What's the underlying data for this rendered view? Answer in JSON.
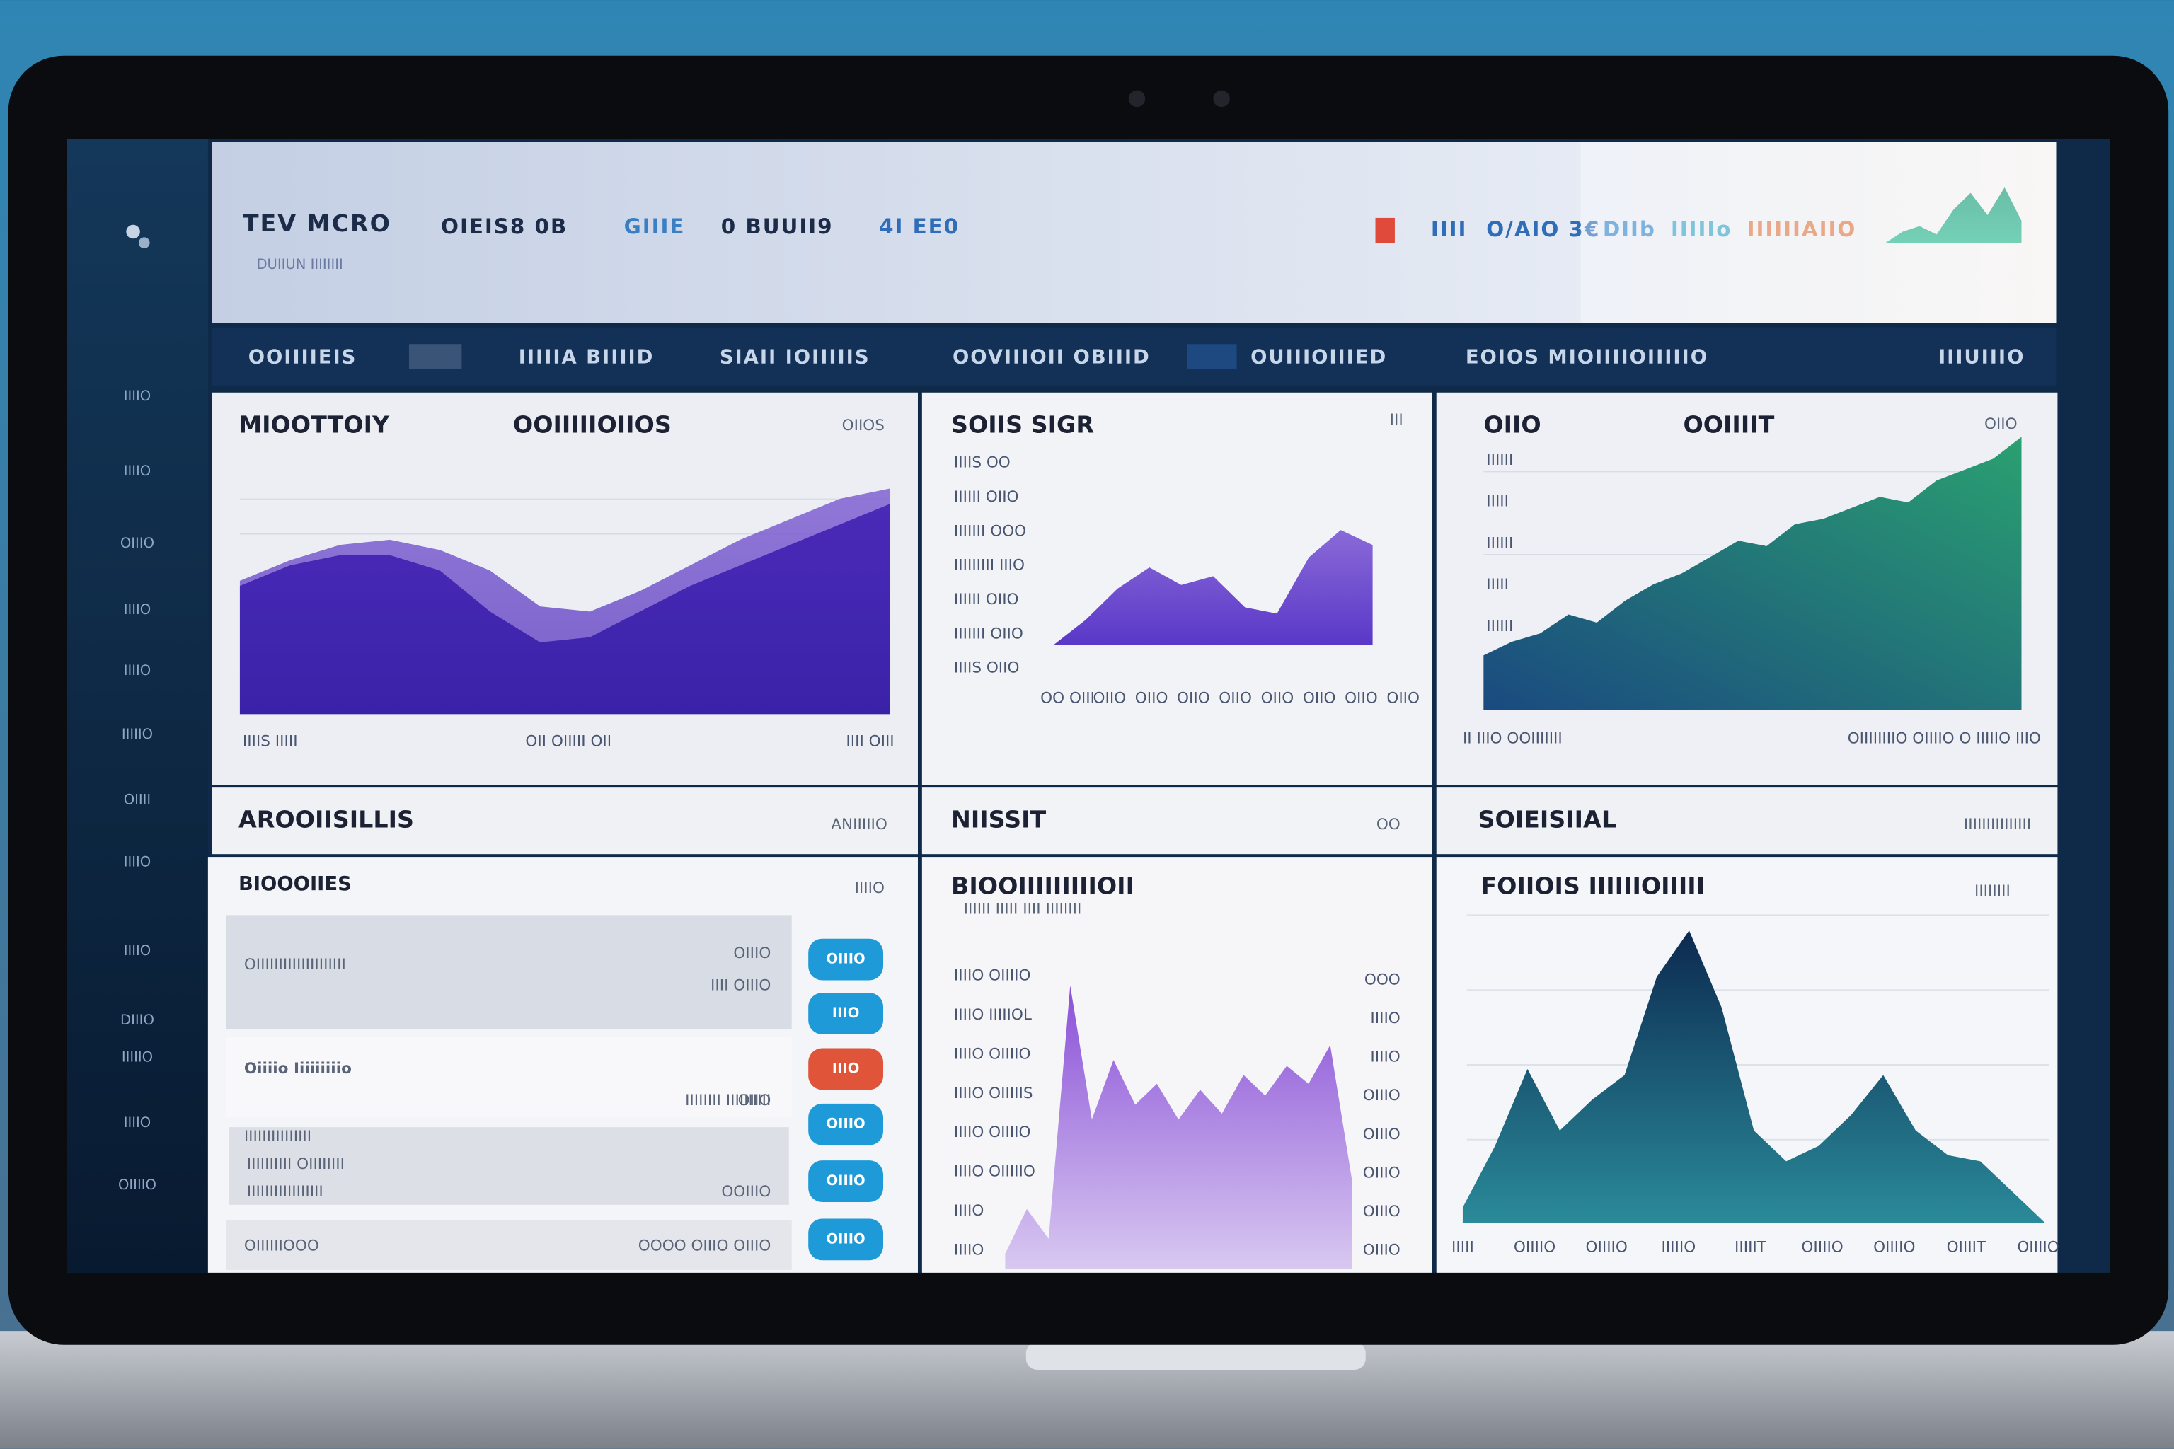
{
  "header": {
    "title": "TEV MCRO",
    "subtitle": "DUIIUN IIIIIIII",
    "nav": [
      "OIEIS8 0B",
      "GIIIE",
      "0 BUUII9",
      "4I EE0"
    ],
    "nav_colors": [
      "#1c2c48",
      "#3a7fc4",
      "#1c2c48",
      "#2f6db8"
    ],
    "right": [
      "IIII",
      "O/AIO 3€",
      "DIIb",
      "IIIIIo",
      "IIIIIIAIIO"
    ],
    "right_colors": [
      "#2f6db8",
      "#2f6db8",
      "#3a8ad0",
      "#3aa6c8",
      "#e07a4a"
    ]
  },
  "sidebar": [
    "IIIIO",
    "IIIIO",
    "OIIIO",
    "IIIIO",
    "IIIIO",
    "IIIIIO",
    "OIIII",
    "IIIIO",
    "IIIIO",
    "DIIIO",
    "IIIIIO",
    "IIIIO",
    "OIIIIO"
  ],
  "tabs": [
    "OOIIIIEIS",
    "IIIIIA BIIIID",
    "SIAII IOIIIIIS",
    "OOVIIIOII OBIIID",
    "OUIIIOIIIED",
    "EOIOS MIOIIIIOIIIIIO",
    "IIIUIIIO"
  ],
  "panels": {
    "sales": {
      "title": "AROOIISILLIS",
      "note": "ANIIIIIO",
      "subtitle": "BIOOOIIES",
      "subnote": "IIIIO"
    },
    "result": {
      "title": "NIISSIT",
      "note": "OO"
    },
    "social": {
      "title": "SOIEISIIAL",
      "note": "IIIIIIIIIIIIIII"
    }
  },
  "list": [
    {
      "title": "OIIIIIIIIIIIIIIIIIIII",
      "right": [
        "OIIIO",
        "IIII OIIIO"
      ],
      "button": "OIIIO",
      "color": "#1f9ad8"
    },
    {
      "title": "Oiiiio Iiiiiiiiio",
      "right": [
        "IIIIIIII IIIIIIIIII",
        "OIIO"
      ],
      "button": "IIIO",
      "color": "#e0553a"
    },
    {
      "title": "IIIIIIIIIIIIIII",
      "right": [
        "IIIIIIIIII OIIIIIIII",
        "IIIIIIIIIIIIIIIII",
        "OOIIIO"
      ],
      "button": "OIIIO",
      "color": "#1f9ad8"
    },
    {
      "title": "OIIIIIIOOO",
      "right": [
        "OOOO OIIIO OIIIO"
      ],
      "button": "OIIIO",
      "color": "#1f9ad8"
    }
  ],
  "extra_buttons": [
    "IIIO",
    "OIIIO"
  ],
  "chart_data": [
    {
      "type": "area",
      "title": "MIOOTTOIY",
      "headings": [
        "OOIIIIIOIIOS",
        "OIIOS"
      ],
      "ylim": [
        0,
        100
      ],
      "x_labels": [
        "IIIIS IIIII",
        "OII OIIIII OII",
        "IIII OIII"
      ],
      "series": [
        {
          "color": "#7a5ad0",
          "color2": "#5a3cc0",
          "values": [
            52,
            60,
            66,
            68,
            64,
            56,
            42,
            40,
            48,
            58,
            68,
            76,
            84,
            88
          ]
        },
        {
          "color": "#4a2ab8",
          "color2": "#3a22a8",
          "values": [
            50,
            58,
            62,
            62,
            56,
            40,
            28,
            30,
            40,
            50,
            58,
            66,
            74,
            82
          ]
        }
      ]
    },
    {
      "type": "area",
      "title": "SOIIS SIGR",
      "headings": [
        "III"
      ],
      "ylim": [
        0,
        100
      ],
      "y_labels": [
        "IIIIS OO",
        "IIIIII OIIO",
        "IIIIIII OOO",
        "IIIIIIIII IIIO",
        "IIIIII OIIO",
        "IIIIIII OIIO",
        "IIIIS OIIO"
      ],
      "x_labels": [
        "OO OIII",
        "OIIO",
        "OIIO",
        "OIIO",
        "OIIO",
        "OIIO",
        "OIIO",
        "OIIO",
        "OIIO"
      ],
      "series": [
        {
          "color": "#8a6ad8",
          "color2": "#5a38c8",
          "values": [
            0,
            20,
            45,
            62,
            48,
            55,
            30,
            25,
            70,
            92,
            80
          ]
        }
      ]
    },
    {
      "type": "area",
      "title": "OIIO",
      "headings": [
        "OOIIIIT",
        "OIIO"
      ],
      "ylim": [
        0,
        100
      ],
      "y_labels": [
        "IIIIII",
        "IIIII",
        "IIIIII",
        "IIIII",
        "IIIIII"
      ],
      "x_labels": [
        "II IIIO OOIIIIIII",
        "OIIIIIIIIO OIIIIO O IIIIIO IIIO"
      ],
      "series": [
        {
          "color": "#2aa070",
          "color2": "#1a4a80",
          "values": [
            20,
            25,
            28,
            35,
            32,
            40,
            46,
            50,
            56,
            62,
            60,
            68,
            70,
            74,
            78,
            76,
            84,
            88,
            92,
            100
          ]
        }
      ]
    },
    {
      "type": "area",
      "title": "BIOOIIIIIIIIIOII",
      "headings": [
        "IIIIII IIIII IIII IIIIIIII"
      ],
      "ylim": [
        0,
        100
      ],
      "y_labels": [
        "IIIIO OIIIIO",
        "IIIIO IIIIIOL",
        "IIIIO OIIIIO",
        "IIIIO OIIIIIS",
        "IIIIO OIIIIO",
        "IIIIO OIIIIIO",
        "IIIIO",
        "IIIIO"
      ],
      "y2_labels": [
        "OOO",
        "IIIIO",
        "IIIIO",
        "OIIIO",
        "OIIIO",
        "OIIIO",
        "OIIIO",
        "OIIIO"
      ],
      "series": [
        {
          "color": "#8a50d8",
          "color2": "#d8c8f0",
          "values": [
            5,
            20,
            10,
            95,
            50,
            70,
            55,
            62,
            50,
            60,
            52,
            65,
            58,
            68,
            62,
            75,
            30
          ]
        }
      ]
    },
    {
      "type": "area",
      "title": "FOIIOIS IIIIIIOIIIII",
      "headings": [
        "IIIIIIII"
      ],
      "ylim": [
        0,
        100
      ],
      "x_labels": [
        "IIIII",
        "OIIIIO",
        "OIIIIO",
        "IIIIIO",
        "IIIIIT",
        "OIIIIO",
        "OIIIIO",
        "OIIIIT",
        "OIIIIO"
      ],
      "series": [
        {
          "color": "#0c2a50",
          "color2": "#2a8a9a",
          "values": [
            5,
            25,
            50,
            30,
            40,
            48,
            80,
            95,
            70,
            30,
            20,
            25,
            35,
            48,
            30,
            22,
            20,
            10,
            0
          ]
        }
      ]
    },
    {
      "type": "area",
      "ylim": [
        0,
        100
      ],
      "series": [
        {
          "color": "#1a9a78",
          "color2": "#2ab890",
          "values": [
            0,
            20,
            30,
            15,
            60,
            90,
            50,
            100,
            40
          ]
        }
      ]
    }
  ]
}
